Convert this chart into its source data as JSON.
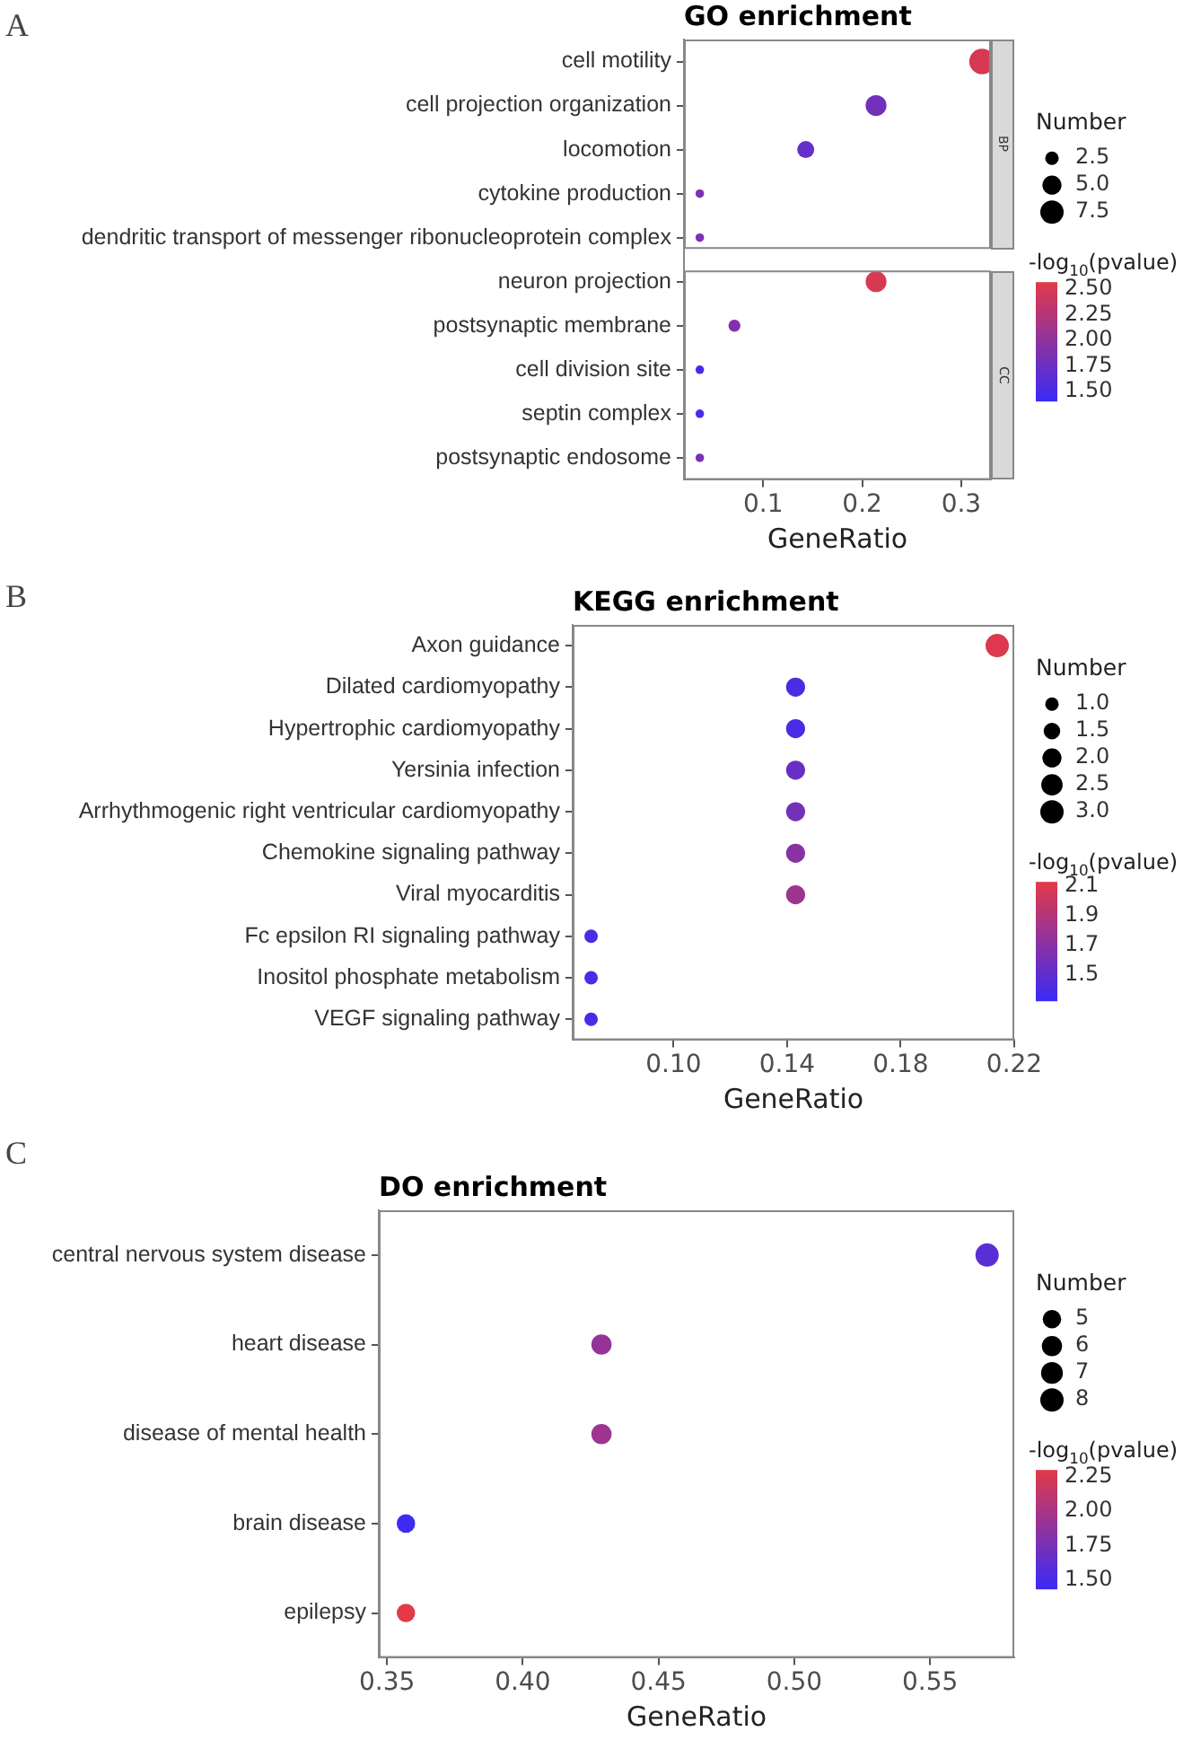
{
  "chart_data": [
    {
      "type": "bubble",
      "orientation": "horizontal",
      "title": "GO enrichment",
      "xlabel": "GeneRatio",
      "annotations": [
        "A",
        "BP",
        "CC"
      ],
      "categories": [
        "cell motility",
        "cell projection organization",
        "locomotion",
        "cytokine production",
        "dendritic transport of messenger ribonucleoprotein complex",
        "neuron projection",
        "postsynaptic membrane",
        "cell division site",
        "septin complex",
        "postsynaptic endosome"
      ],
      "values": [
        0.321,
        0.214,
        0.143,
        0.036,
        0.036,
        0.214,
        0.071,
        0.036,
        0.036,
        0.036
      ],
      "sizes": [
        9,
        6,
        4,
        1,
        1,
        6,
        2,
        1,
        1,
        1
      ],
      "cvalues": [
        2.5,
        1.8,
        1.7,
        1.85,
        1.85,
        2.5,
        1.9,
        1.5,
        1.5,
        1.85
      ],
      "legend_title": "Number",
      "size_legend": [
        2.5,
        {
          "value": 5,
          "label": "5.0"
        },
        7.5
      ],
      "clabel": "-log$_{10}$(pvalue)",
      "clim": [
        1.41,
        2.57
      ],
      "cticks": [
        {
          "value": 2.5,
          "label": "2.50"
        },
        2.25,
        {
          "value": 2,
          "label": "2.00"
        },
        1.75,
        {
          "value": 1.5,
          "label": "1.50"
        }
      ],
      "xlim": [
        0.02,
        0.33
      ],
      "xticks": [
        0.1,
        0.2,
        0.3
      ]
    },
    {
      "type": "bubble",
      "orientation": "horizontal",
      "title": "KEGG enrichment",
      "xlabel": "GeneRatio",
      "annotations": [
        "B"
      ],
      "categories": [
        "Axon guidance",
        "Dilated cardiomyopathy",
        "Hypertrophic cardiomyopathy",
        "Yersinia infection",
        "Arrhythmogenic right ventricular cardiomyopathy",
        "Chemokine signaling pathway",
        "Viral myocarditis",
        "Fc epsilon RI signaling pathway",
        "Inositol phosphate metabolism",
        "VEGF signaling pathway"
      ],
      "values": [
        0.214,
        0.143,
        0.143,
        0.143,
        0.143,
        0.143,
        0.143,
        0.071,
        0.071,
        0.071
      ],
      "sizes": [
        3,
        2,
        2,
        2,
        2,
        2,
        2,
        1,
        1,
        1
      ],
      "cvalues": [
        2.1,
        1.4,
        1.4,
        1.55,
        1.6,
        1.7,
        1.8,
        1.4,
        1.4,
        1.4
      ],
      "clabel": "-log$_{10}$(pvalue)",
      "clim": [
        1.33,
        2.13
      ],
      "cticks": [
        2.1,
        1.9,
        1.7,
        1.5
      ],
      "legend_title": "Number",
      "size_legend": [
        {
          "value": 1,
          "label": "1.0"
        },
        1.5,
        {
          "value": 2,
          "label": "2.0"
        },
        2.5,
        {
          "value": 3,
          "label": "3.0"
        }
      ],
      "xlim": [
        0.0645,
        0.22
      ],
      "xticks": [
        {
          "value": 0.1,
          "label": "0.10"
        },
        0.14,
        0.18,
        0.22
      ]
    },
    {
      "type": "bubble",
      "orientation": "horizontal",
      "title": "DO enrichment",
      "xlabel": "GeneRatio",
      "annotations": [
        "C"
      ],
      "categories": [
        "central nervous system disease",
        "heart disease",
        "disease of mental health",
        "brain disease",
        "epilepsy"
      ],
      "values": [
        0.571,
        0.429,
        0.429,
        0.357,
        0.357
      ],
      "sizes": [
        8,
        6,
        6,
        5,
        5
      ],
      "cvalues": [
        1.6,
        1.9,
        1.95,
        1.45,
        2.3
      ],
      "clabel": "-log$_{10}$(pvalue)",
      "clim": [
        1.44,
        2.3
      ],
      "cticks": [
        2.25,
        {
          "value": 2,
          "label": "2.00"
        },
        1.75,
        {
          "value": 1.5,
          "label": "1.50"
        }
      ],
      "legend_title": "Number",
      "size_legend": [
        5,
        6,
        7,
        8
      ],
      "xlim": [
        0.347,
        0.581
      ],
      "xticks": [
        0.35,
        {
          "value": 0.4,
          "label": "0.40"
        },
        0.45,
        {
          "value": 0.5,
          "label": "0.50"
        },
        0.55
      ]
    }
  ]
}
